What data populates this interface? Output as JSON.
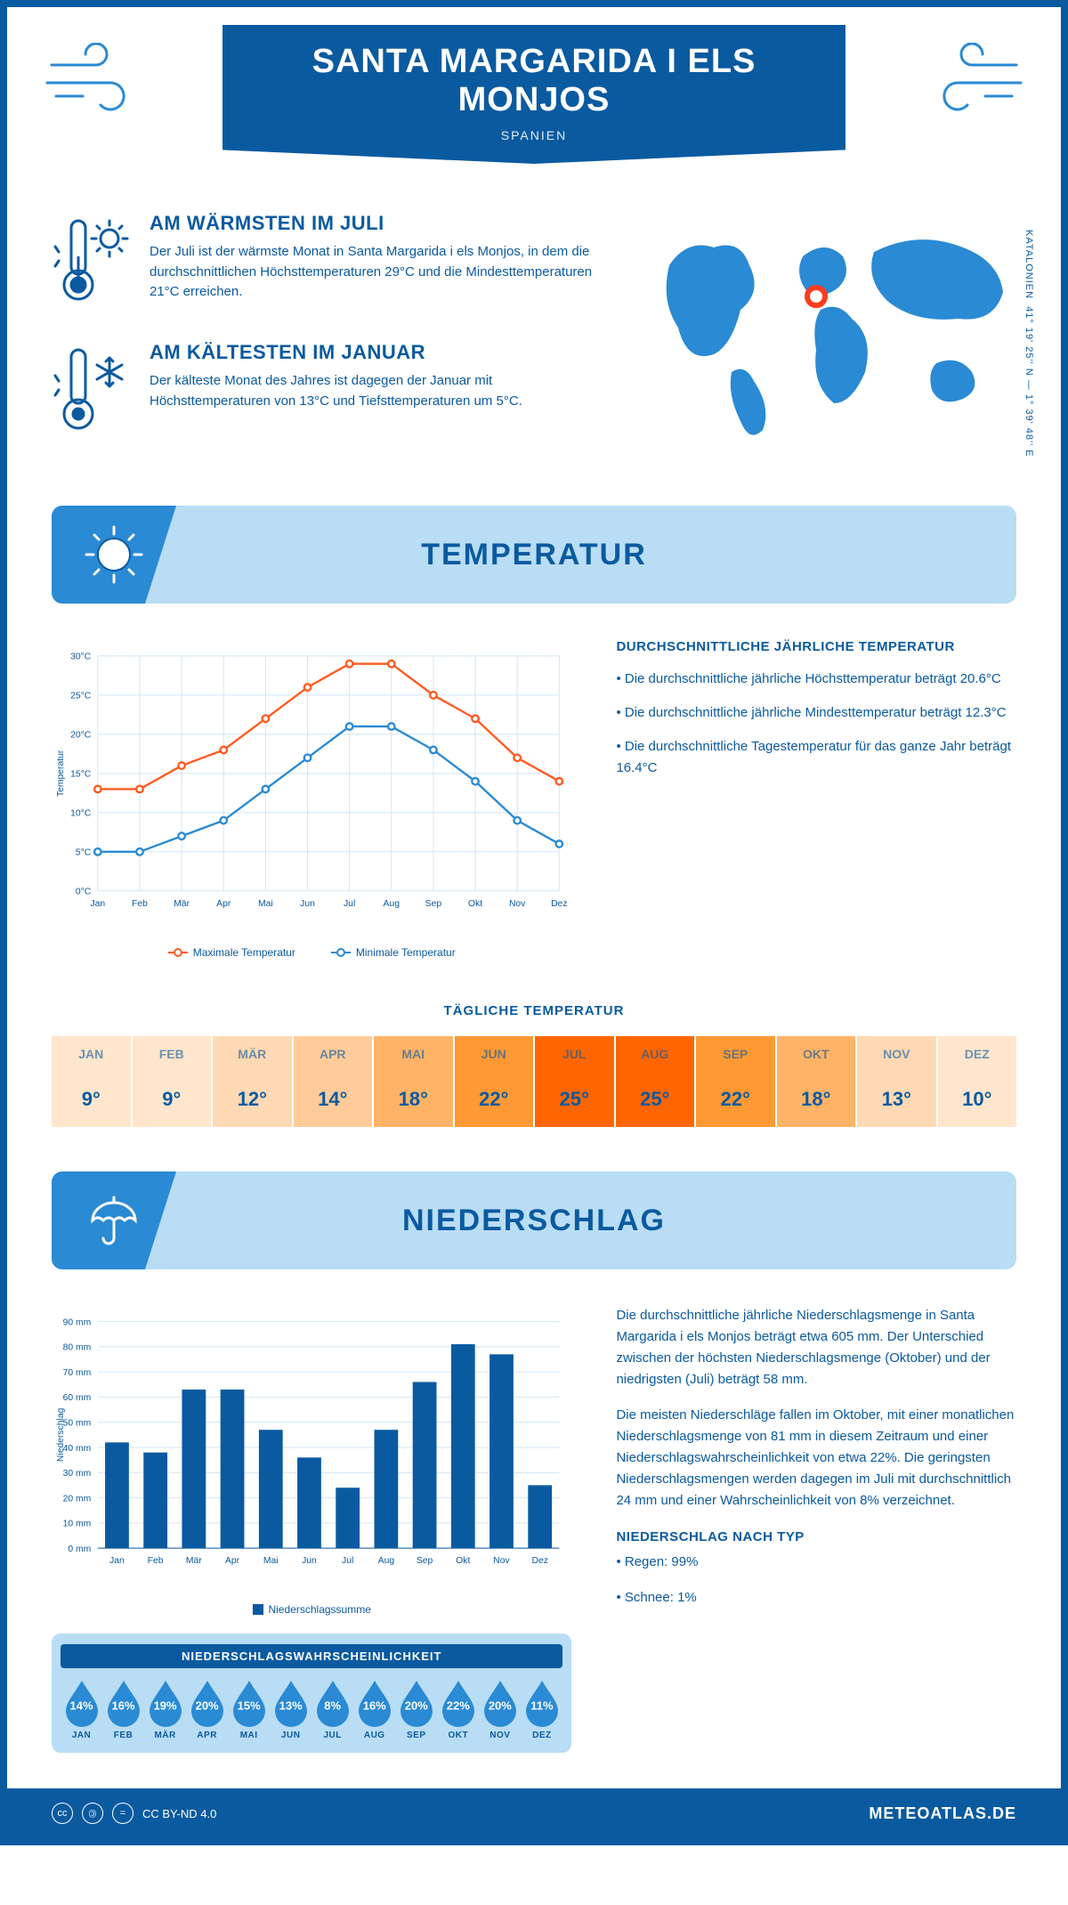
{
  "colors": {
    "primary": "#0a5aa0",
    "accent": "#2a8ad4",
    "light": "#b9ddf4",
    "max_line": "#ff5a1f",
    "min_line": "#2a8ad4",
    "grid": "#d0e4f5"
  },
  "header": {
    "title": "SANTA MARGARIDA I ELS MONJOS",
    "subtitle": "SPANIEN"
  },
  "coords": {
    "region": "KATALONIEN",
    "lat": "41° 19' 25'' N",
    "lon": "1° 39' 48'' E"
  },
  "info": {
    "warm": {
      "title": "AM WÄRMSTEN IM JULI",
      "text": "Der Juli ist der wärmste Monat in Santa Margarida i els Monjos, in dem die durchschnittlichen Höchsttemperaturen 29°C und die Mindesttemperaturen 21°C erreichen."
    },
    "cold": {
      "title": "AM KÄLTESTEN IM JANUAR",
      "text": "Der kälteste Monat des Jahres ist dagegen der Januar mit Höchsttemperaturen von 13°C und Tiefsttemperaturen um 5°C."
    }
  },
  "sections": {
    "temp_title": "TEMPERATUR",
    "precip_title": "NIEDERSCHLAG"
  },
  "temp_chart": {
    "months": [
      "Jan",
      "Feb",
      "Mär",
      "Apr",
      "Mai",
      "Jun",
      "Jul",
      "Aug",
      "Sep",
      "Okt",
      "Nov",
      "Dez"
    ],
    "max": [
      13,
      13,
      16,
      18,
      22,
      26,
      29,
      29,
      25,
      22,
      17,
      14
    ],
    "min": [
      5,
      5,
      7,
      9,
      13,
      17,
      21,
      21,
      18,
      14,
      9,
      6
    ],
    "ylim": [
      0,
      30
    ],
    "ytick_step": 5,
    "ylabel": "Temperatur",
    "legend_max": "Maximale Temperatur",
    "legend_min": "Minimale Temperatur"
  },
  "temp_summary": {
    "title": "DURCHSCHNITTLICHE JÄHRLICHE TEMPERATUR",
    "b1": "• Die durchschnittliche jährliche Höchsttemperatur beträgt 20.6°C",
    "b2": "• Die durchschnittliche jährliche Mindesttemperatur beträgt 12.3°C",
    "b3": "• Die durchschnittliche Tagestemperatur für das ganze Jahr beträgt 16.4°C"
  },
  "daily_temp": {
    "title": "TÄGLICHE TEMPERATUR",
    "months": [
      "JAN",
      "FEB",
      "MÄR",
      "APR",
      "MAI",
      "JUN",
      "JUL",
      "AUG",
      "SEP",
      "OKT",
      "NOV",
      "DEZ"
    ],
    "values": [
      "9°",
      "9°",
      "12°",
      "14°",
      "18°",
      "22°",
      "25°",
      "25°",
      "22°",
      "18°",
      "13°",
      "10°"
    ],
    "colors": [
      "#ffe6cc",
      "#ffe6cc",
      "#ffd9b3",
      "#ffcc99",
      "#ffb366",
      "#ff9933",
      "#ff6600",
      "#ff6600",
      "#ff9933",
      "#ffb366",
      "#ffd9b3",
      "#ffe6cc"
    ]
  },
  "precip_chart": {
    "months": [
      "Jan",
      "Feb",
      "Mär",
      "Apr",
      "Mai",
      "Jun",
      "Jul",
      "Aug",
      "Sep",
      "Okt",
      "Nov",
      "Dez"
    ],
    "values": [
      42,
      38,
      63,
      63,
      47,
      36,
      24,
      47,
      66,
      81,
      77,
      25
    ],
    "ylim": [
      0,
      90
    ],
    "ytick_step": 10,
    "ylabel": "Niederschlag",
    "legend": "Niederschlagssumme",
    "bar_color": "#0a5aa0"
  },
  "precip_text": {
    "p1": "Die durchschnittliche jährliche Niederschlagsmenge in Santa Margarida i els Monjos beträgt etwa 605 mm. Der Unterschied zwischen der höchsten Niederschlagsmenge (Oktober) und der niedrigsten (Juli) beträgt 58 mm.",
    "p2": "Die meisten Niederschläge fallen im Oktober, mit einer monatlichen Niederschlagsmenge von 81 mm in diesem Zeitraum und einer Niederschlagswahrscheinlichkeit von etwa 22%. Die geringsten Niederschlagsmengen werden dagegen im Juli mit durchschnittlich 24 mm und einer Wahrscheinlichkeit von 8% verzeichnet.",
    "type_title": "NIEDERSCHLAG NACH TYP",
    "type1": "• Regen: 99%",
    "type2": "• Schnee: 1%"
  },
  "precip_prob": {
    "title": "NIEDERSCHLAGSWAHRSCHEINLICHKEIT",
    "months": [
      "JAN",
      "FEB",
      "MÄR",
      "APR",
      "MAI",
      "JUN",
      "JUL",
      "AUG",
      "SEP",
      "OKT",
      "NOV",
      "DEZ"
    ],
    "values": [
      "14%",
      "16%",
      "19%",
      "20%",
      "15%",
      "13%",
      "8%",
      "16%",
      "20%",
      "22%",
      "20%",
      "11%"
    ]
  },
  "footer": {
    "license": "CC BY-ND 4.0",
    "brand": "METEOATLAS.DE"
  }
}
